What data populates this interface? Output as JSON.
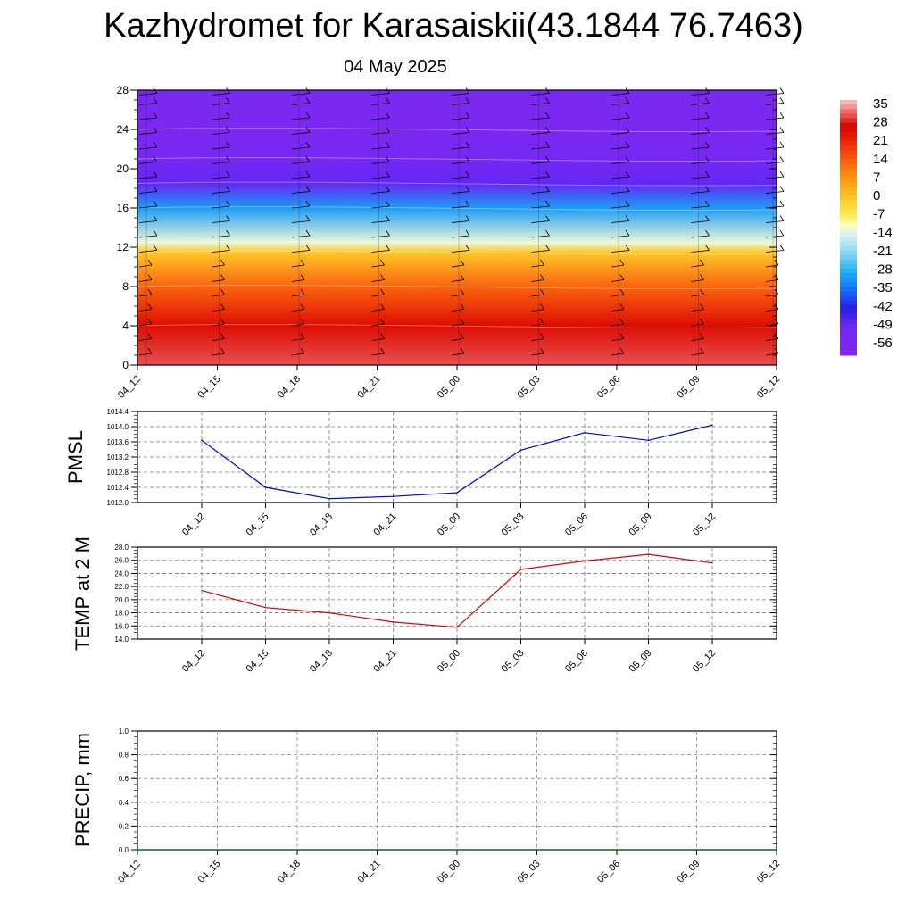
{
  "title": "Kazhydromet for Karasaiskii(43.1844 76.7463)",
  "subtitle": "04 May 2025",
  "time_labels": [
    "04_12",
    "04_15",
    "04_18",
    "04_21",
    "05_00",
    "05_03",
    "05_06",
    "05_09",
    "05_12"
  ],
  "chart_data": [
    {
      "type": "heatmap",
      "title": "",
      "ylabel": "",
      "yticks": [
        0,
        4,
        8,
        12,
        16,
        20,
        24,
        28
      ],
      "ylim": [
        0,
        28
      ],
      "x": [
        "04_12",
        "04_15",
        "04_18",
        "04_21",
        "05_00",
        "05_03",
        "05_06",
        "05_09",
        "05_12"
      ],
      "colorbar_labels": [
        "35",
        "28",
        "21",
        "14",
        "7",
        "0",
        "-7",
        "-14",
        "-21",
        "-28",
        "-35",
        "-42",
        "-49",
        "-56"
      ],
      "colorbar_range": [
        -60,
        38
      ],
      "temperature_profile": [
        {
          "height": 0,
          "value": 32
        },
        {
          "height": 4,
          "value": 26
        },
        {
          "height": 8,
          "value": 14
        },
        {
          "height": 11.5,
          "value": 0
        },
        {
          "height": 12.5,
          "value": -12
        },
        {
          "height": 16,
          "value": -30
        },
        {
          "height": 18.5,
          "value": -48
        },
        {
          "height": 21,
          "value": -54
        },
        {
          "height": 24,
          "value": -57
        },
        {
          "height": 28,
          "value": -57
        }
      ],
      "wind_barbs": "present"
    },
    {
      "type": "line",
      "ylabel": "PMSL",
      "ylim": [
        1012.0,
        1014.4
      ],
      "yticks": [
        "1012.0",
        "1012.4",
        "1012.8",
        "1013.2",
        "1013.6",
        "1014.0",
        "1014.4"
      ],
      "x": [
        "04_12",
        "04_15",
        "04_18",
        "04_21",
        "05_00",
        "05_03",
        "05_06",
        "05_09",
        "05_12"
      ],
      "series": [
        {
          "values": [
            1013.64,
            1012.4,
            1012.1,
            1012.16,
            1012.26,
            1013.38,
            1013.84,
            1013.64,
            1014.04
          ],
          "color": "#0000cc"
        }
      ]
    },
    {
      "type": "line",
      "ylabel": "TEMP at 2 M",
      "ylim": [
        14.0,
        28.0
      ],
      "yticks": [
        "14.0",
        "16.0",
        "18.0",
        "20.0",
        "22.0",
        "24.0",
        "26.0",
        "28.0"
      ],
      "x": [
        "04_12",
        "04_15",
        "04_18",
        "04_21",
        "05_00",
        "05_03",
        "05_06",
        "05_09",
        "05_12"
      ],
      "series": [
        {
          "values": [
            21.4,
            18.8,
            18.0,
            16.6,
            15.8,
            24.6,
            25.9,
            26.9,
            25.6
          ],
          "color": "#dd0000"
        }
      ]
    },
    {
      "type": "line",
      "ylabel": "PRECIP, mm",
      "ylim": [
        0.0,
        1.0
      ],
      "yticks": [
        "0.0",
        "0.2",
        "0.4",
        "0.6",
        "0.8",
        "1.0"
      ],
      "x": [
        "04_12",
        "04_15",
        "04_18",
        "04_21",
        "05_00",
        "05_03",
        "05_06",
        "05_09",
        "05_12"
      ],
      "series": [
        {
          "values": [
            0,
            0,
            0,
            0,
            0,
            0,
            0,
            0,
            0
          ],
          "color": "#006600"
        }
      ]
    }
  ]
}
